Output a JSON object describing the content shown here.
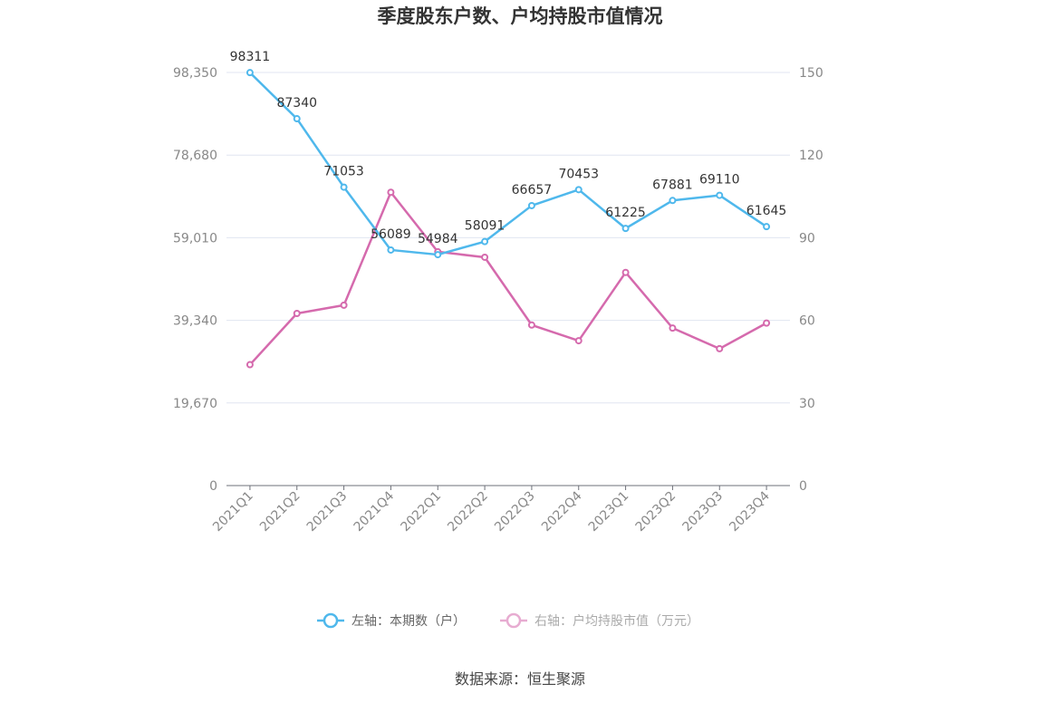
{
  "chart_data": {
    "type": "line",
    "title": "季度股东户数、户均持股市值情况",
    "categories": [
      "2021Q1",
      "2021Q2",
      "2021Q3",
      "2021Q4",
      "2022Q1",
      "2022Q2",
      "2022Q3",
      "2022Q4",
      "2023Q1",
      "2023Q2",
      "2023Q3",
      "2023Q4"
    ],
    "left_axis": {
      "ticks": [
        "0",
        "19,670",
        "39,340",
        "59,010",
        "78,680",
        "98,350"
      ],
      "range": [
        0,
        98350
      ]
    },
    "right_axis": {
      "ticks": [
        "0",
        "30",
        "60",
        "90",
        "120",
        "150"
      ],
      "range": [
        0,
        150
      ]
    },
    "grid": true,
    "legend_position": "bottom",
    "series": [
      {
        "name": "左轴：本期数（户）",
        "axis": "left",
        "color": "#4fb8ec",
        "values": [
          98311,
          87340,
          71053,
          56089,
          54984,
          58091,
          66657,
          70453,
          61225,
          67881,
          69110,
          61645
        ],
        "labels": [
          "98311",
          "87340",
          "71053",
          "56089",
          "54984",
          "58091",
          "66657",
          "70453",
          "61225",
          "67881",
          "69110",
          "61645"
        ]
      },
      {
        "name": "右轴：户均持股市值（万元）",
        "axis": "right",
        "color": "#d56aad",
        "values": [
          43.9,
          62.5,
          65.5,
          106.5,
          84.9,
          82.9,
          58.3,
          52.6,
          77.4,
          57.2,
          49.7,
          59.0
        ]
      }
    ]
  },
  "source": "数据来源：恒生聚源"
}
